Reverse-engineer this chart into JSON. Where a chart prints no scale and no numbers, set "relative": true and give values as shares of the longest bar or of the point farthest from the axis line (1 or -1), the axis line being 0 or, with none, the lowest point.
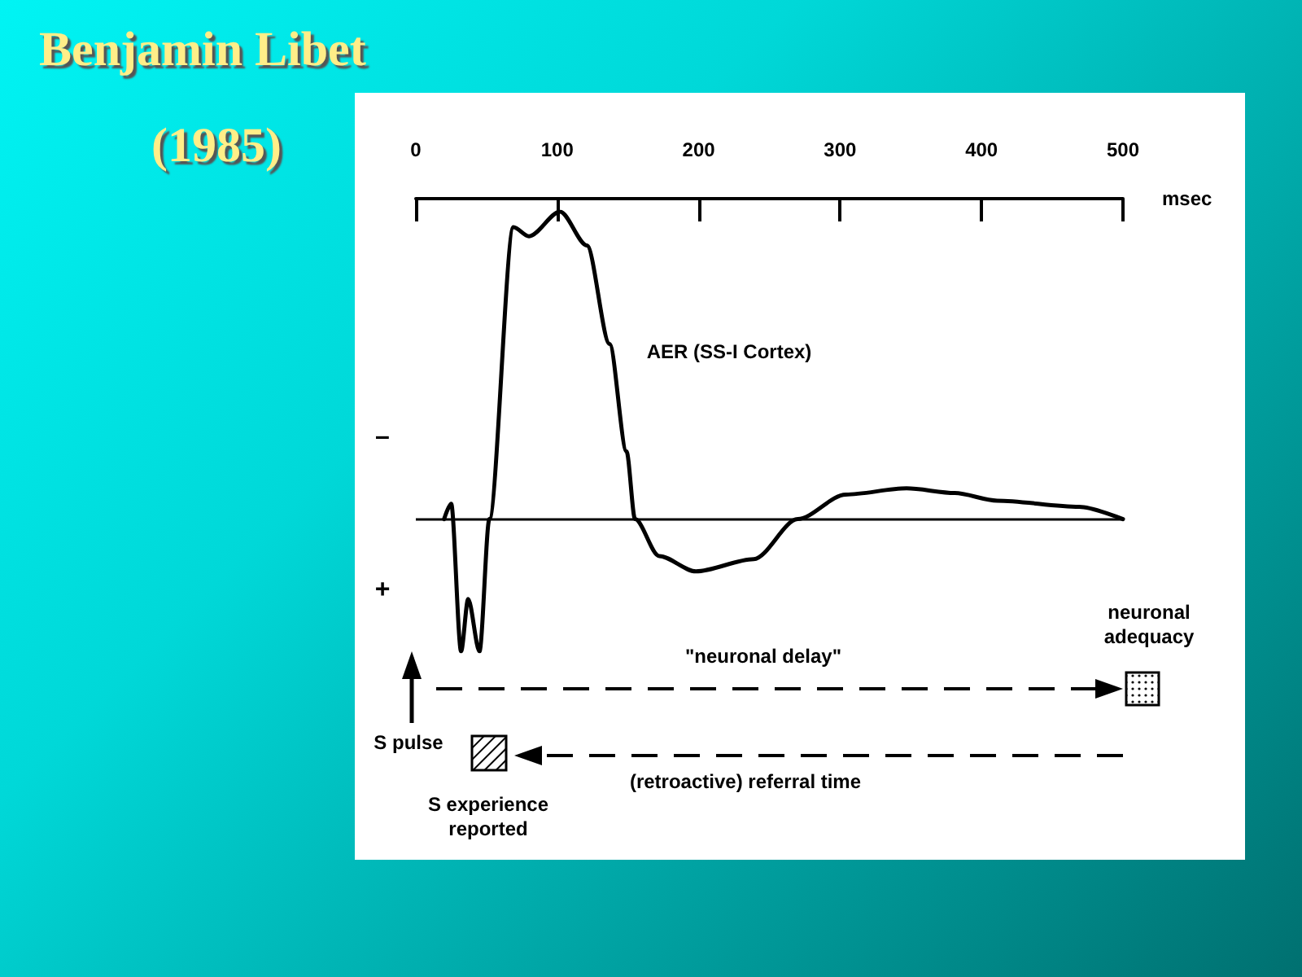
{
  "chart_data": {
    "type": "line",
    "title": "Benjamin Libet",
    "subtitle": "(1985)",
    "xlabel": "msec",
    "relative": true,
    "x": [
      20,
      25,
      32,
      37,
      45,
      52,
      69,
      80,
      102,
      121,
      137,
      149,
      155,
      172,
      198,
      239,
      270,
      304,
      347,
      381,
      411,
      469,
      500
    ],
    "series": [
      {
        "color": "#000000",
        "values": [
          0,
          0.05,
          -0.43,
          -0.26,
          -0.43,
          0,
          0.95,
          0.92,
          1.0,
          0.89,
          0.57,
          0.22,
          0,
          -0.12,
          -0.17,
          -0.13,
          0,
          0.08,
          0.1,
          0.085,
          0.06,
          0.04,
          0
        ]
      }
    ],
    "xlim": [
      0,
      500
    ],
    "xticks": [
      0,
      100,
      200,
      300,
      400,
      500
    ],
    "ref_lines": [
      {
        "axis": "y",
        "value": 0
      }
    ],
    "grid": false,
    "marker": "none",
    "line_style": "solid",
    "annotations": [
      "AER (SS-I Cortex)",
      "–",
      "+",
      "\"neuronal delay\"",
      "neuronal adequacy",
      "S pulse",
      "S experience reported",
      "(retroactive) referral time"
    ]
  }
}
